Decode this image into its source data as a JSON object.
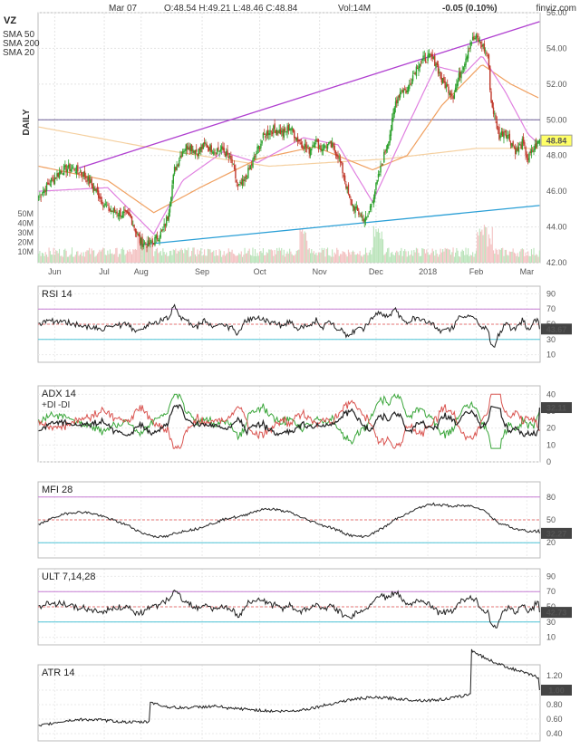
{
  "header": {
    "ticker": "VZ",
    "date": "Mar 07",
    "ohlc": "O:48.54  H:49.21  L:48.46  C:48.84",
    "volume": "Vol:14M",
    "change": "-0.05 (0.10%)",
    "brand": "finviz.com",
    "timeframe": "DAILY"
  },
  "legend": [
    {
      "label": "SMA 50",
      "color": "#f0a060"
    },
    {
      "label": "SMA 200",
      "color": "#f5d0a0"
    },
    {
      "label": "SMA 20",
      "color": "#e080e0"
    }
  ],
  "colors": {
    "up": "#2ca02c",
    "down": "#c0392b",
    "trend": "#b040d0",
    "support": "#2a9fd6",
    "last": "#ffff66"
  },
  "chart_data": [
    {
      "id": "price",
      "type": "candlestick",
      "title": "VZ",
      "x_ticks": [
        "Jun",
        "Jul",
        "Aug",
        "Sep",
        "Oct",
        "Nov",
        "Dec",
        "2018",
        "Feb",
        "Mar"
      ],
      "y_ticks": [
        "56.00",
        "54.00",
        "52.00",
        "50.00",
        "48.00",
        "46.00",
        "44.00",
        "42.00"
      ],
      "ylim": [
        42,
        56
      ],
      "last_value": "48.84",
      "volume_ticks": [
        "50M",
        "40M",
        "30M",
        "20M",
        "10M"
      ],
      "close_series_approx": [
        [
          0,
          45.7
        ],
        [
          10,
          46.5
        ],
        [
          20,
          47.2
        ],
        [
          30,
          47.3
        ],
        [
          40,
          46.9
        ],
        [
          50,
          46.0
        ],
        [
          60,
          45.0
        ],
        [
          70,
          44.8
        ],
        [
          80,
          44.5
        ],
        [
          88,
          43.2
        ],
        [
          95,
          43.0
        ],
        [
          100,
          43.2
        ],
        [
          108,
          43.8
        ],
        [
          112,
          44.6
        ],
        [
          118,
          47.2
        ],
        [
          125,
          48.3
        ],
        [
          130,
          48.6
        ],
        [
          138,
          48.2
        ],
        [
          145,
          48.6
        ],
        [
          150,
          48.4
        ],
        [
          160,
          48.3
        ],
        [
          168,
          47.6
        ],
        [
          173,
          46.2
        ],
        [
          178,
          46.5
        ],
        [
          185,
          47.5
        ],
        [
          190,
          48.3
        ],
        [
          195,
          49.0
        ],
        [
          200,
          49.4
        ],
        [
          207,
          49.5
        ],
        [
          212,
          49.2
        ],
        [
          218,
          49.6
        ],
        [
          225,
          48.9
        ],
        [
          230,
          48.6
        ],
        [
          235,
          48.3
        ],
        [
          240,
          48.9
        ],
        [
          245,
          48.4
        ],
        [
          250,
          48.6
        ],
        [
          255,
          48.5
        ],
        [
          260,
          48.0
        ],
        [
          265,
          46.9
        ],
        [
          270,
          45.5
        ],
        [
          275,
          45.0
        ],
        [
          280,
          44.6
        ],
        [
          285,
          44.4
        ],
        [
          290,
          45.6
        ],
        [
          294,
          46.5
        ],
        [
          298,
          47.5
        ],
        [
          302,
          48.5
        ],
        [
          306,
          49.5
        ],
        [
          310,
          51.0
        ],
        [
          315,
          51.7
        ],
        [
          320,
          51.6
        ],
        [
          325,
          52.5
        ],
        [
          330,
          53.2
        ],
        [
          335,
          53.4
        ],
        [
          340,
          53.5
        ],
        [
          345,
          53.2
        ],
        [
          350,
          52.2
        ],
        [
          355,
          51.8
        ],
        [
          360,
          51.4
        ],
        [
          365,
          52.4
        ],
        [
          370,
          53.3
        ],
        [
          375,
          54.4
        ],
        [
          380,
          54.6
        ],
        [
          385,
          54.2
        ],
        [
          390,
          53.6
        ],
        [
          393,
          51.0
        ],
        [
          396,
          50.2
        ],
        [
          400,
          49.1
        ],
        [
          405,
          49.4
        ],
        [
          410,
          48.8
        ],
        [
          415,
          48.2
        ],
        [
          420,
          48.7
        ],
        [
          425,
          47.8
        ],
        [
          430,
          48.4
        ],
        [
          435,
          48.84
        ]
      ],
      "sma20_approx": [
        [
          0,
          46.0
        ],
        [
          60,
          46.2
        ],
        [
          100,
          43.6
        ],
        [
          125,
          46.6
        ],
        [
          160,
          48.2
        ],
        [
          190,
          47.6
        ],
        [
          230,
          49.0
        ],
        [
          260,
          48.6
        ],
        [
          290,
          45.4
        ],
        [
          320,
          49.6
        ],
        [
          345,
          53.0
        ],
        [
          370,
          52.6
        ],
        [
          385,
          53.6
        ],
        [
          405,
          51.6
        ],
        [
          425,
          49.2
        ],
        [
          435,
          48.6
        ]
      ],
      "sma50_approx": [
        [
          0,
          47.4
        ],
        [
          60,
          46.6
        ],
        [
          100,
          44.8
        ],
        [
          140,
          46.2
        ],
        [
          190,
          47.8
        ],
        [
          240,
          48.5
        ],
        [
          290,
          47.2
        ],
        [
          320,
          48.0
        ],
        [
          350,
          50.8
        ],
        [
          385,
          53.1
        ],
        [
          410,
          52.0
        ],
        [
          435,
          51.2
        ]
      ],
      "sma200_approx": [
        [
          0,
          49.6
        ],
        [
          100,
          48.4
        ],
        [
          200,
          47.4
        ],
        [
          300,
          47.8
        ],
        [
          380,
          48.4
        ],
        [
          435,
          48.4
        ]
      ],
      "trend_upper": [
        [
          35,
          47.3
        ],
        [
          435,
          55.5
        ]
      ],
      "support_line": [
        [
          88,
          43.0
        ],
        [
          435,
          45.2
        ]
      ],
      "resistance_level": 50.0
    },
    {
      "id": "rsi",
      "type": "line",
      "title": "RSI 14",
      "y_ticks": [
        "90",
        "70",
        "50",
        "30",
        "10"
      ],
      "ylim": [
        0,
        100
      ],
      "levels": [
        30,
        50,
        70
      ],
      "last_value": "43.67"
    },
    {
      "id": "adx",
      "type": "line",
      "title": "ADX 14",
      "series_labels": [
        "+DI",
        "-DI"
      ],
      "y_ticks": [
        "40",
        "30",
        "20",
        "10",
        "0"
      ],
      "ylim": [
        0,
        45
      ],
      "last_value": "32.11"
    },
    {
      "id": "mfi",
      "type": "line",
      "title": "MFI 28",
      "y_ticks": [
        "80",
        "50",
        "20"
      ],
      "ylim": [
        0,
        100
      ],
      "levels": [
        20,
        50,
        80
      ],
      "last_value": "32.27"
    },
    {
      "id": "ult",
      "type": "line",
      "title": "ULT 7,14,28",
      "y_ticks": [
        "90",
        "70",
        "50",
        "30",
        "10"
      ],
      "ylim": [
        0,
        100
      ],
      "levels": [
        30,
        50,
        70
      ],
      "last_value": "42.73"
    },
    {
      "id": "atr",
      "type": "line",
      "title": "ATR 14",
      "y_ticks": [
        "1.20",
        "1.00",
        "0.80",
        "0.60",
        "0.40"
      ],
      "ylim": [
        0.3,
        1.35
      ],
      "last_value": "1.00"
    }
  ]
}
